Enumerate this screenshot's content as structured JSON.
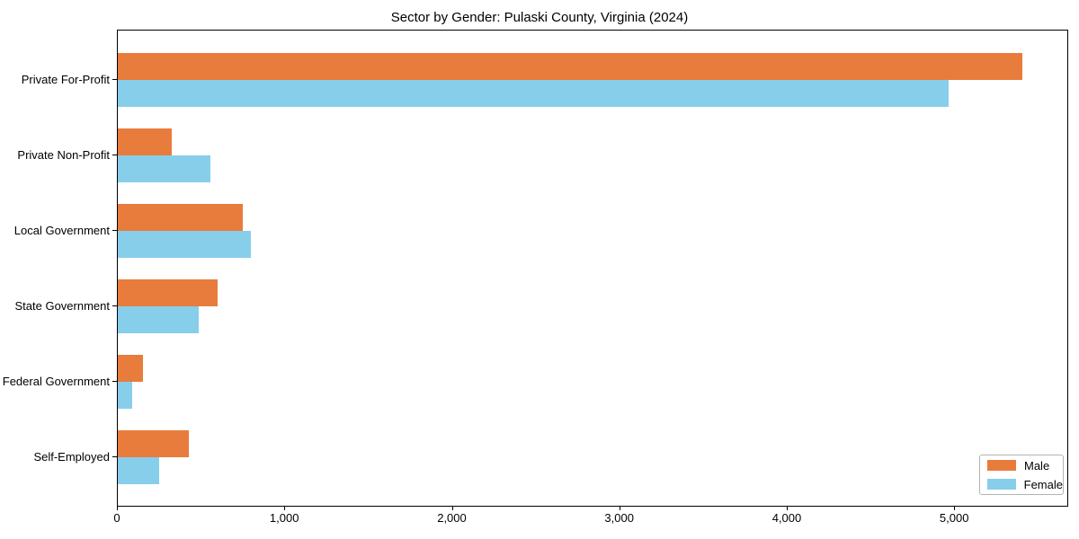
{
  "chart_data": {
    "type": "bar",
    "orientation": "horizontal",
    "title": "Sector by Gender: Pulaski County, Virginia (2024)",
    "categories": [
      "Private For-Profit",
      "Private Non-Profit",
      "Local Government",
      "State Government",
      "Federal Government",
      "Self-Employed"
    ],
    "series": [
      {
        "name": "Male",
        "color": "#e87c3c",
        "values": [
          5400,
          320,
          745,
          595,
          150,
          425
        ]
      },
      {
        "name": "Female",
        "color": "#87ceeb",
        "values": [
          4960,
          555,
          795,
          485,
          85,
          245
        ]
      }
    ],
    "xlabel": "",
    "ylabel": "",
    "xlim": [
      0,
      5670
    ],
    "xticks": [
      0,
      1000,
      2000,
      3000,
      4000,
      5000
    ],
    "xtick_labels": [
      "0",
      "1,000",
      "2,000",
      "3,000",
      "4,000",
      "5,000"
    ],
    "grid": false,
    "legend": {
      "position": "lower right",
      "entries": [
        "Male",
        "Female"
      ]
    },
    "colors": {
      "frame": "#000000",
      "background": "#ffffff"
    }
  }
}
